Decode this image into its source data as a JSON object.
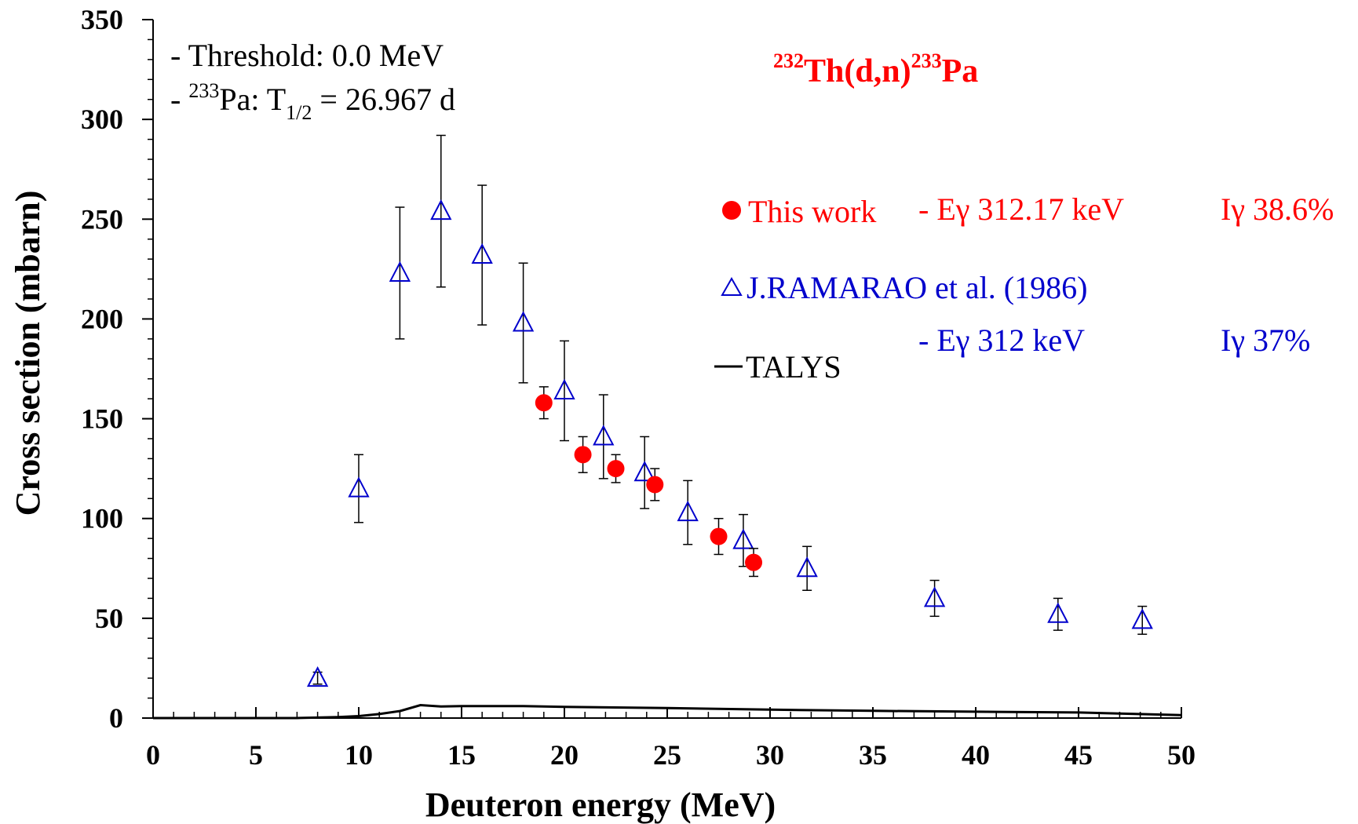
{
  "chart_data": {
    "type": "scatter",
    "title": "",
    "xlabel": "Deuteron energy (MeV)",
    "ylabel": "Cross section (mbarn)",
    "xlim": [
      0,
      50
    ],
    "ylim": [
      0,
      350
    ],
    "xticks": [
      "0",
      "5",
      "10",
      "15",
      "20",
      "25",
      "30",
      "35",
      "40",
      "45",
      "50"
    ],
    "yticks": [
      "0",
      "50",
      "100",
      "150",
      "200",
      "250",
      "300",
      "350"
    ],
    "grid": false,
    "reaction": {
      "mass_target": "232",
      "target": "Th(d,n)",
      "mass_product": "233",
      "product": "Pa",
      "color": "#ff0000"
    },
    "info": {
      "threshold": "- Threshold: 0.0 MeV",
      "halflife_prefix": "- ",
      "halflife_mass": "233",
      "halflife_nuclide": "Pa: T",
      "halflife_sub": "1/2",
      "halflife_value": " = 26.967 d"
    },
    "legend": [
      {
        "marker": "●",
        "label": "This work",
        "detail": "- Eγ 312.17 keV",
        "intensity": "Iγ 38.6%",
        "color": "#ff0000"
      },
      {
        "marker": "△",
        "label": "J.RAMARAO et al. (1986)",
        "detail": "- Eγ 312 keV",
        "intensity": "Iγ 37%",
        "color": "#0000cc"
      },
      {
        "marker": "—",
        "label": "TALYS",
        "color": "#000000"
      }
    ],
    "series": [
      {
        "name": "This work",
        "marker": "circle",
        "color": "#ff0000",
        "points": [
          {
            "x": 19.0,
            "y": 158,
            "err": 8
          },
          {
            "x": 20.9,
            "y": 132,
            "err": 9
          },
          {
            "x": 22.5,
            "y": 125,
            "err": 7
          },
          {
            "x": 24.4,
            "y": 117,
            "err": 8
          },
          {
            "x": 27.5,
            "y": 91,
            "err": 9
          },
          {
            "x": 29.2,
            "y": 78,
            "err": 7
          }
        ]
      },
      {
        "name": "J.RAMARAO et al. (1986)",
        "marker": "triangle",
        "color": "#0000cc",
        "points": [
          {
            "x": 8.0,
            "y": 20,
            "err": 3
          },
          {
            "x": 10.0,
            "y": 115,
            "err": 17
          },
          {
            "x": 12.0,
            "y": 223,
            "err": 33
          },
          {
            "x": 14.0,
            "y": 254,
            "err": 38
          },
          {
            "x": 16.0,
            "y": 232,
            "err": 35
          },
          {
            "x": 18.0,
            "y": 198,
            "err": 30
          },
          {
            "x": 20.0,
            "y": 164,
            "err": 25
          },
          {
            "x": 21.9,
            "y": 141,
            "err": 21
          },
          {
            "x": 23.9,
            "y": 123,
            "err": 18
          },
          {
            "x": 26.0,
            "y": 103,
            "err": 16
          },
          {
            "x": 28.7,
            "y": 89,
            "err": 13
          },
          {
            "x": 31.8,
            "y": 75,
            "err": 11
          },
          {
            "x": 38.0,
            "y": 60,
            "err": 9
          },
          {
            "x": 44.0,
            "y": 52,
            "err": 8
          },
          {
            "x": 48.1,
            "y": 49,
            "err": 7
          }
        ]
      },
      {
        "name": "TALYS",
        "marker": "line",
        "color": "#000000",
        "points": [
          {
            "x": 0,
            "y": 0
          },
          {
            "x": 7,
            "y": 0
          },
          {
            "x": 9,
            "y": 0.5
          },
          {
            "x": 10,
            "y": 1
          },
          {
            "x": 11,
            "y": 2
          },
          {
            "x": 12,
            "y": 3.5
          },
          {
            "x": 13,
            "y": 6.5
          },
          {
            "x": 14,
            "y": 5.8
          },
          {
            "x": 15,
            "y": 6
          },
          {
            "x": 18,
            "y": 6
          },
          {
            "x": 20,
            "y": 5.6
          },
          {
            "x": 25,
            "y": 5
          },
          {
            "x": 30,
            "y": 4.2
          },
          {
            "x": 35,
            "y": 3.6
          },
          {
            "x": 40,
            "y": 3.2
          },
          {
            "x": 45,
            "y": 2.8
          },
          {
            "x": 50,
            "y": 1.5
          }
        ]
      }
    ]
  }
}
